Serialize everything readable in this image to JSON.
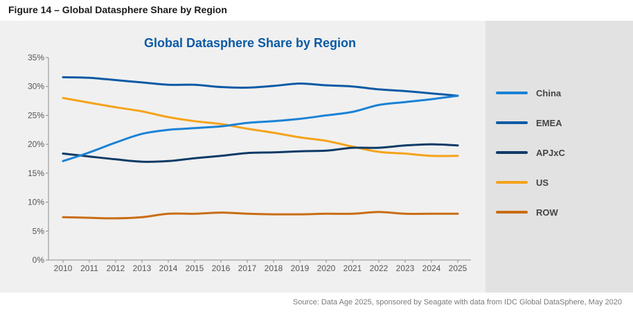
{
  "figure_caption": "Figure 14 – Global Datasphere Share by Region",
  "source": "Source: Data Age 2025, sponsored by Seagate with data from IDC Global DataSphere, May 2020",
  "chart_data": {
    "type": "line",
    "title": "Global Datasphere Share by Region",
    "xlabel": "",
    "ylabel": "",
    "x": [
      "2010",
      "2011",
      "2012",
      "2013",
      "2014",
      "2015",
      "2016",
      "2017",
      "2018",
      "2019",
      "2020",
      "2021",
      "2022",
      "2023",
      "2024",
      "2025"
    ],
    "ylim": [
      0,
      35
    ],
    "yticks": [
      0,
      5,
      10,
      15,
      20,
      25,
      30,
      35
    ],
    "ytick_labels": [
      "0%",
      "5%",
      "10%",
      "15%",
      "20%",
      "25%",
      "30%",
      "35%"
    ],
    "grid": false,
    "legend_position": "right",
    "series": [
      {
        "name": "China",
        "color": "#1a82d6",
        "values": [
          17.1,
          18.6,
          20.3,
          21.8,
          22.5,
          22.8,
          23.1,
          23.7,
          24.0,
          24.4,
          25.0,
          25.6,
          26.8,
          27.3,
          27.8,
          28.4
        ]
      },
      {
        "name": "EMEA",
        "color": "#0b5aa5",
        "values": [
          31.6,
          31.5,
          31.1,
          30.7,
          30.3,
          30.3,
          29.9,
          29.8,
          30.1,
          30.5,
          30.2,
          30.0,
          29.5,
          29.2,
          28.8,
          28.4
        ]
      },
      {
        "name": "APJxC",
        "color": "#0d3a66",
        "values": [
          18.4,
          17.9,
          17.4,
          17.0,
          17.1,
          17.6,
          18.0,
          18.5,
          18.6,
          18.8,
          18.9,
          19.4,
          19.4,
          19.8,
          20.0,
          19.8
        ]
      },
      {
        "name": "US",
        "color": "#f5a31a",
        "values": [
          28.0,
          27.2,
          26.4,
          25.7,
          24.7,
          24.0,
          23.5,
          22.7,
          22.0,
          21.2,
          20.6,
          19.6,
          18.7,
          18.4,
          18.0,
          18.0
        ]
      },
      {
        "name": "ROW",
        "color": "#c96d14",
        "values": [
          7.4,
          7.3,
          7.2,
          7.4,
          8.0,
          8.0,
          8.2,
          8.0,
          7.9,
          7.9,
          8.0,
          8.0,
          8.3,
          8.0,
          8.0,
          8.0
        ]
      }
    ]
  }
}
